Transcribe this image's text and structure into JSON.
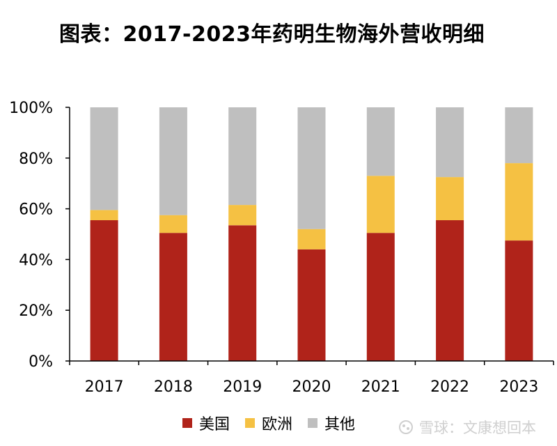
{
  "title": "图表：2017-2023年药明生物海外营收明细",
  "chart_data": {
    "type": "bar",
    "stacked": true,
    "categories": [
      "2017",
      "2018",
      "2019",
      "2020",
      "2021",
      "2022",
      "2023"
    ],
    "series": [
      {
        "name": "美国",
        "color": "#B0231A",
        "values": [
          55.5,
          50.5,
          53.5,
          44,
          50.5,
          55.5,
          47.5
        ]
      },
      {
        "name": "欧洲",
        "color": "#F5C143",
        "values": [
          4,
          7,
          8,
          8,
          22.5,
          17,
          30.5
        ]
      },
      {
        "name": "其他",
        "color": "#BFBFBF",
        "values": [
          40.5,
          42.5,
          38.5,
          48,
          27,
          27.5,
          22
        ]
      }
    ],
    "ylim": [
      0,
      100
    ],
    "yticks": [
      "0%",
      "20%",
      "40%",
      "60%",
      "80%",
      "100%"
    ],
    "grid": false,
    "legend_position": "bottom"
  },
  "watermark": {
    "text": "雪球：文康想回本",
    "icon": "snowball-icon"
  }
}
